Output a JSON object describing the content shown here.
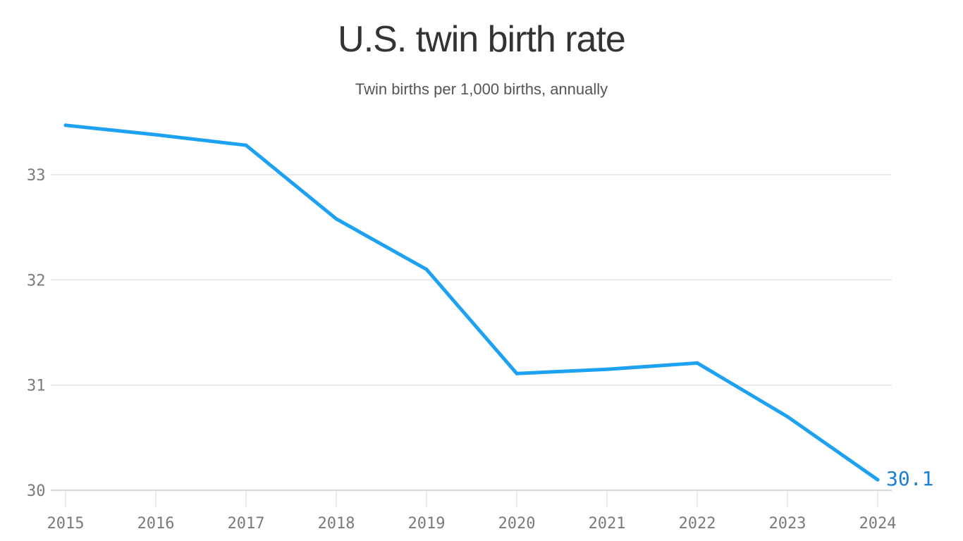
{
  "colors": {
    "line": "#1da1f2",
    "end_label": "#1a7fd6",
    "grid": "#dddddd",
    "axis": "#cccccc"
  },
  "chart_data": {
    "type": "line",
    "title": "U.S. twin birth rate",
    "subtitle": "Twin births per 1,000 births, annually",
    "xlabel": "",
    "ylabel": "",
    "x": [
      "2015",
      "2016",
      "2017",
      "2018",
      "2019",
      "2020",
      "2021",
      "2022",
      "2023",
      "2024"
    ],
    "series": [
      {
        "values": [
          33.47,
          33.38,
          33.28,
          32.58,
          32.1,
          31.11,
          31.15,
          31.21,
          30.7,
          30.1
        ]
      }
    ],
    "ylim": [
      30,
      33
    ],
    "yticks": [
      "30",
      "31",
      "32",
      "33"
    ],
    "grid": true,
    "legend": "none",
    "end_label": "30.1"
  }
}
